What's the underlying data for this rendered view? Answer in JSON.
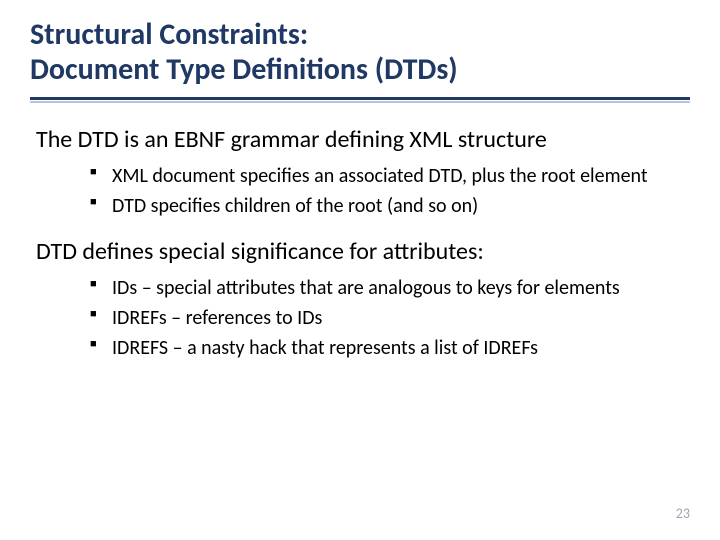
{
  "title_line1": "Structural Constraints:",
  "title_line2": "Document Type Definitions (DTDs)",
  "section1": {
    "heading": "The DTD is an EBNF grammar defining XML structure",
    "bullets": [
      "XML document specifies an associated DTD, plus the root element",
      "DTD specifies children of the root (and so on)"
    ]
  },
  "section2": {
    "heading": "DTD defines special significance for attributes:",
    "bullets": [
      "IDs – special attributes that are analogous to keys for elements",
      "IDREFs – references to IDs",
      "IDREFS – a nasty hack that represents a list of IDREFs"
    ]
  },
  "page_number": "23",
  "colors": {
    "title": "#1f3864",
    "rule_dark": "#1f3864",
    "rule_light": "#b8c5d6",
    "body": "#000000",
    "pagenum": "#9aa5b1",
    "background": "#ffffff"
  },
  "fonts": {
    "title_size_pt": 30,
    "body_size_pt": 24,
    "bullet_size_pt": 20,
    "pagenum_size_pt": 14,
    "title_weight": 700
  }
}
